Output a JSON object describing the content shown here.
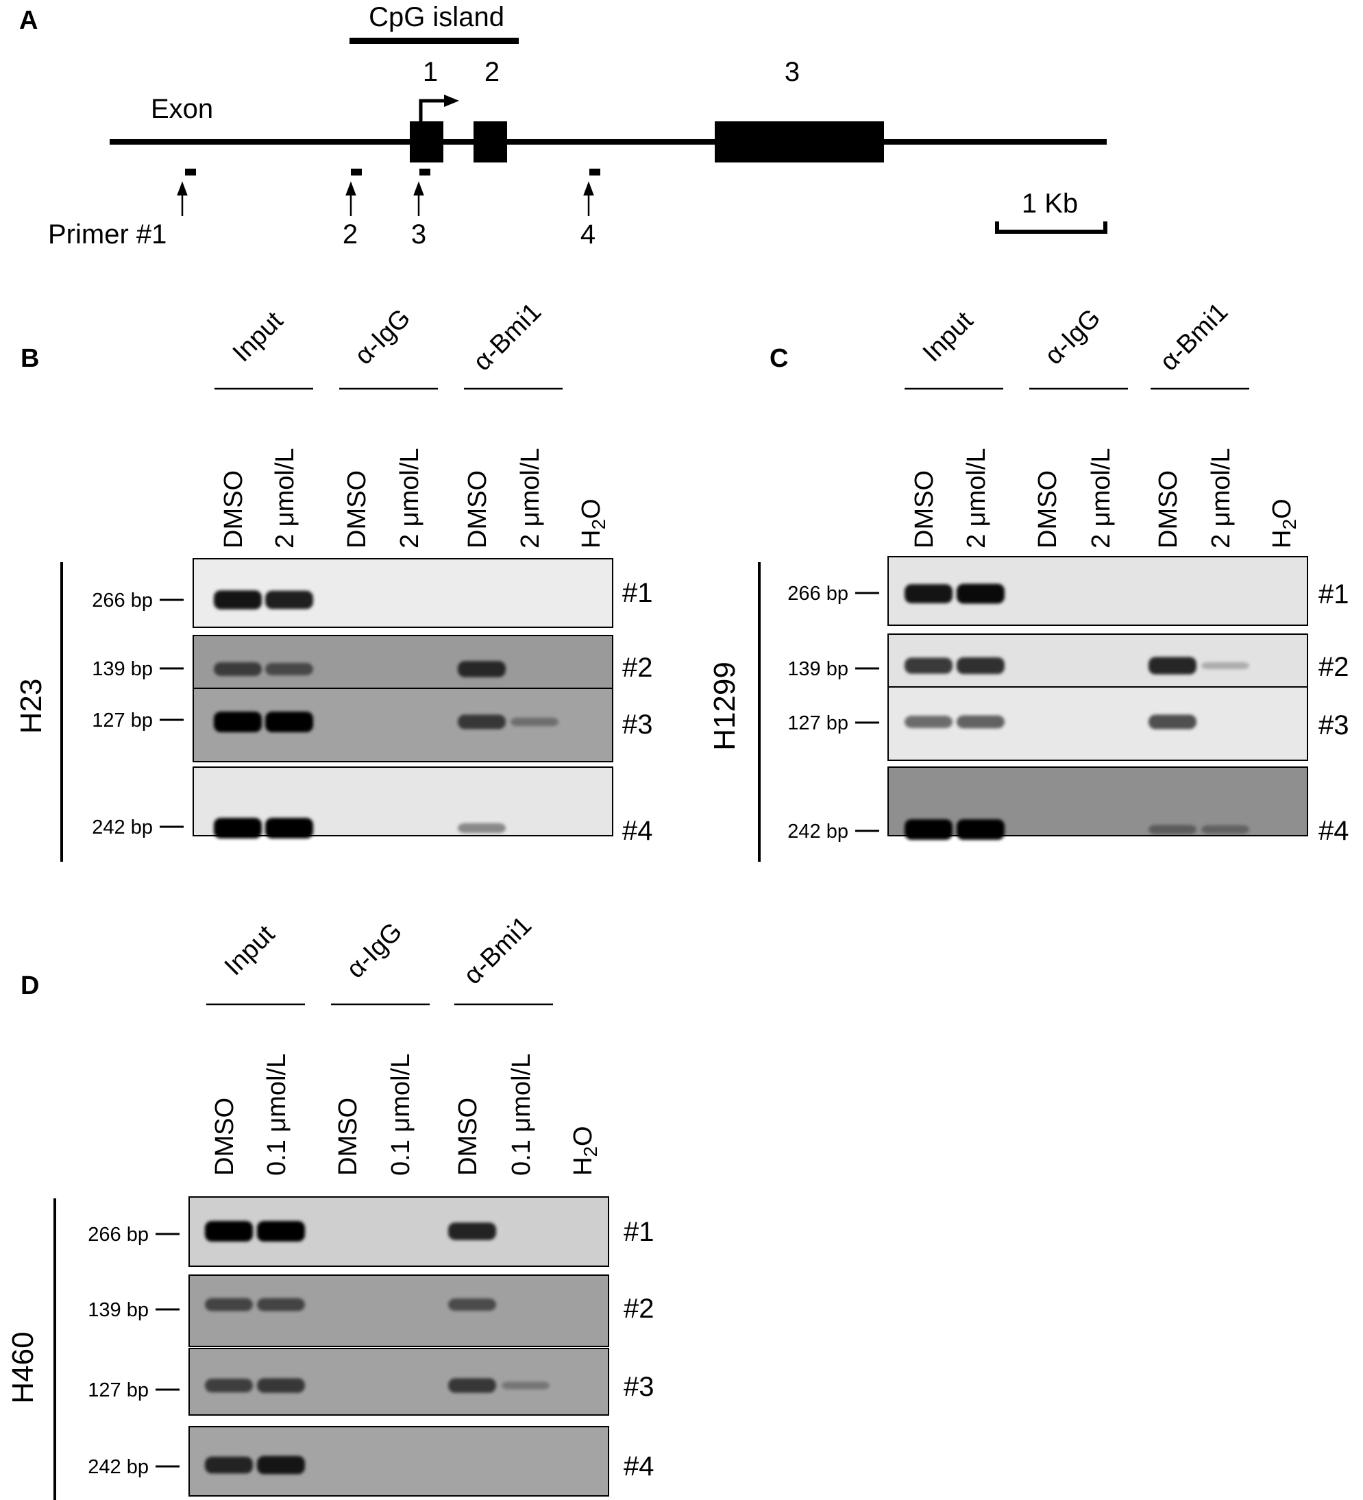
{
  "panelA": {
    "letter": "A",
    "cpg_label": "CpG island",
    "exon_label": "Exon",
    "exons": [
      "1",
      "2",
      "3"
    ],
    "primer_labels": [
      "Primer #1",
      "2",
      "3",
      "4"
    ],
    "scale_label": "1 Kb"
  },
  "gels": [
    {
      "letter": "B",
      "cell_line": "H23",
      "groups": [
        "Input",
        "α-IgG",
        "α-Bmi1"
      ],
      "lanes": [
        "DMSO",
        "2 μmol/L",
        "DMSO",
        "2 μmol/L",
        "DMSO",
        "2 μmol/L",
        "H2O"
      ],
      "rows": [
        {
          "size": "266 bp",
          "label": "#1",
          "bands": [
            0.9,
            0.85,
            0,
            0,
            0,
            0,
            0
          ]
        },
        {
          "size": "139 bp",
          "label": "#2",
          "bands": [
            0.55,
            0.45,
            0,
            0,
            0.7,
            0,
            0
          ]
        },
        {
          "size": "127 bp",
          "label": "#3",
          "bands": [
            1,
            1,
            0,
            0,
            0.6,
            0.2,
            0
          ]
        },
        {
          "size": "242 bp",
          "label": "#4",
          "bands": [
            1,
            1,
            0,
            0,
            0.3,
            0,
            0
          ]
        }
      ]
    },
    {
      "letter": "C",
      "cell_line": "H1299",
      "groups": [
        "Input",
        "α-IgG",
        "α-Bmi1"
      ],
      "lanes": [
        "DMSO",
        "2 μmol/L",
        "DMSO",
        "2 μmol/L",
        "DMSO",
        "2 μmol/L",
        "H2O"
      ],
      "rows": [
        {
          "size": "266 bp",
          "label": "#1",
          "bands": [
            0.9,
            0.95,
            0,
            0,
            0,
            0,
            0
          ]
        },
        {
          "size": "139 bp",
          "label": "#2",
          "bands": [
            0.7,
            0.75,
            0,
            0,
            0.8,
            0.1,
            0
          ]
        },
        {
          "size": "127 bp",
          "label": "#3",
          "bands": [
            0.45,
            0.5,
            0,
            0,
            0.6,
            0,
            0
          ]
        },
        {
          "size": "242 bp",
          "label": "#4",
          "bands": [
            1,
            1,
            0,
            0,
            0.25,
            0.2,
            0
          ]
        }
      ]
    },
    {
      "letter": "D",
      "cell_line": "H460",
      "groups": [
        "Input",
        "α-IgG",
        "α-Bmi1"
      ],
      "lanes": [
        "DMSO",
        "0.1 μmol/L",
        "DMSO",
        "0.1 μmol/L",
        "DMSO",
        "0.1 μmol/L",
        "H2O"
      ],
      "rows": [
        {
          "size": "266 bp",
          "label": "#1",
          "bands": [
            1,
            1,
            0,
            0,
            0.8,
            0,
            0
          ]
        },
        {
          "size": "139 bp",
          "label": "#2",
          "bands": [
            0.5,
            0.5,
            0,
            0,
            0.45,
            0,
            0
          ]
        },
        {
          "size": "127 bp",
          "label": "#3",
          "bands": [
            0.55,
            0.6,
            0,
            0,
            0.6,
            0.15,
            0
          ]
        },
        {
          "size": "242 bp",
          "label": "#4",
          "bands": [
            0.75,
            0.85,
            0,
            0,
            0,
            0,
            0
          ]
        }
      ]
    }
  ]
}
